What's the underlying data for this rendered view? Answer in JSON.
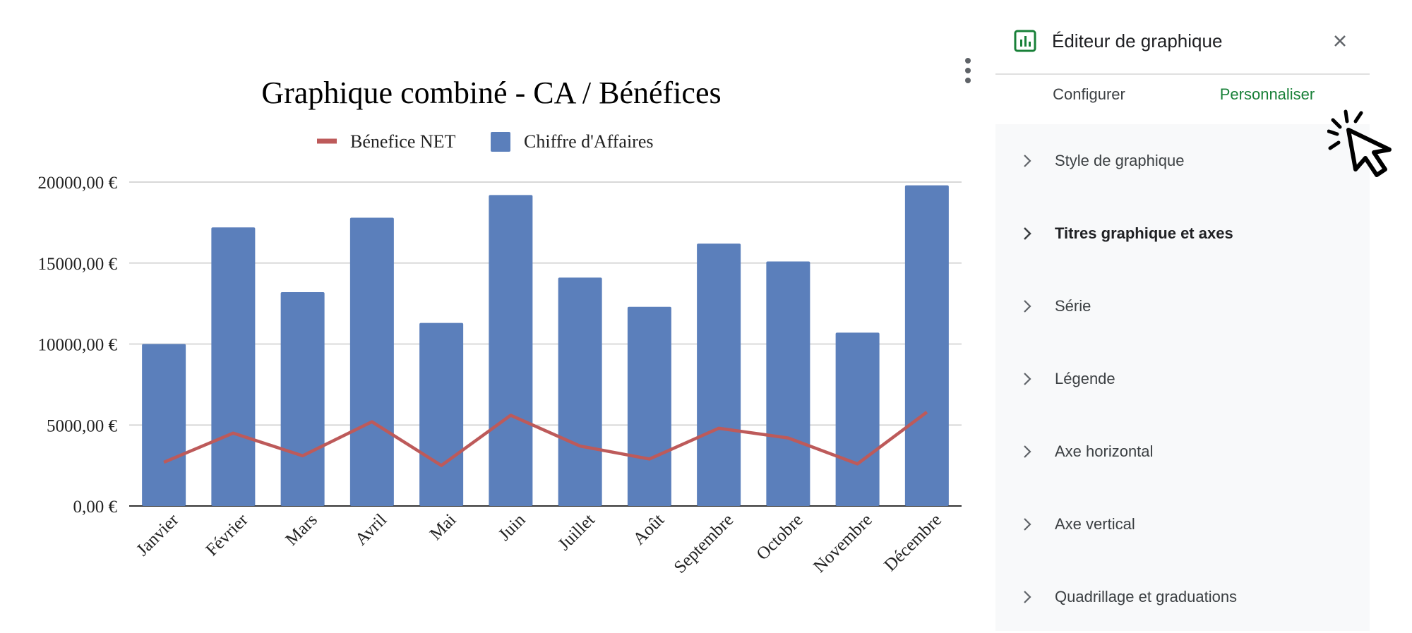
{
  "chart_data": {
    "type": "bar",
    "title": "Graphique combiné - CA / Bénéfices",
    "categories": [
      "Janvier",
      "Février",
      "Mars",
      "Avril",
      "Mai",
      "Juin",
      "Juillet",
      "Août",
      "Septembre",
      "Octobre",
      "Novembre",
      "Décembre"
    ],
    "series": [
      {
        "name": "Chiffre d'Affaires",
        "type": "bar",
        "color": "#5b7fbb",
        "values": [
          10000,
          17200,
          13200,
          17800,
          11300,
          19200,
          14100,
          12300,
          16200,
          15100,
          10700,
          19800
        ]
      },
      {
        "name": "Bénefice NET",
        "type": "line",
        "color": "#bd5a5a",
        "values": [
          2700,
          4500,
          3100,
          5200,
          2500,
          5600,
          3700,
          2900,
          4800,
          4200,
          2600,
          5800
        ]
      }
    ],
    "y_ticks": [
      "0,00 €",
      "5000,00 €",
      "10000,00 €",
      "15000,00 €",
      "20000,00 €"
    ],
    "ylim": [
      0,
      20000
    ],
    "legend_position": "top",
    "grid": true
  },
  "editor": {
    "title": "Éditeur de graphique",
    "tabs": [
      {
        "label": "Configurer",
        "active": false
      },
      {
        "label": "Personnaliser",
        "active": true
      }
    ],
    "sections": [
      {
        "label": "Style de graphique"
      },
      {
        "label": "Titres graphique et axes"
      },
      {
        "label": "Série"
      },
      {
        "label": "Légende"
      },
      {
        "label": "Axe horizontal"
      },
      {
        "label": "Axe vertical"
      },
      {
        "label": "Quadrillage et graduations"
      }
    ],
    "accent_color": "#188038",
    "icons": {
      "header": "chart-icon",
      "close": "close-icon",
      "section": "chevron-right-icon",
      "menu": "more-vert-icon"
    }
  }
}
